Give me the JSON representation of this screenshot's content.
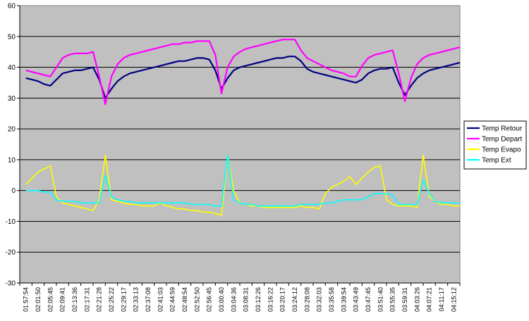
{
  "chart_data": {
    "type": "line",
    "title": "",
    "xlabel": "",
    "ylabel": "",
    "ylim": [
      -30,
      60
    ],
    "y_ticks": [
      -30,
      -20,
      -10,
      0,
      10,
      20,
      30,
      40,
      50,
      60
    ],
    "grid": "horizontal",
    "legend_position": "right",
    "plot_background": "#c0c0c0",
    "x_ticks": [
      "01:57:54",
      "02:01:50",
      "02:05:45",
      "02:09:41",
      "02:13:36",
      "02:17:31",
      "02:21:28",
      "02:25:22",
      "02:29:17",
      "02:33:13",
      "02:37:08",
      "02:41:03",
      "02:44:59",
      "02:48:54",
      "02:52:50",
      "02:56:45",
      "03:00:40",
      "03:04:36",
      "03:08:31",
      "03:12:26",
      "03:16:22",
      "03:20:17",
      "03:24:12",
      "03:28:08",
      "03:32:03",
      "03:35:58",
      "03:39:54",
      "03:43:49",
      "03:47:45",
      "03:51:40",
      "03:55:35",
      "03:59:31",
      "04:03:26",
      "04:07:21",
      "04:11:17",
      "04:15:12"
    ],
    "x": [
      0,
      0.5,
      1,
      1.5,
      2,
      2.5,
      3,
      3.5,
      4,
      4.5,
      5,
      5.5,
      6,
      6.5,
      7,
      7.5,
      8,
      8.5,
      9,
      9.5,
      10,
      10.5,
      11,
      11.5,
      12,
      12.5,
      13,
      13.5,
      14,
      14.5,
      15,
      15.5,
      16,
      16.5,
      17,
      17.5,
      18,
      18.5,
      19,
      19.5,
      20,
      20.5,
      21,
      21.5,
      22,
      22.5,
      23,
      23.5,
      24,
      24.5,
      25,
      25.5,
      26,
      26.5,
      27,
      27.5,
      28,
      28.5,
      29,
      29.5,
      30,
      30.5,
      31,
      31.5,
      32,
      32.5,
      33,
      33.5,
      34,
      34.5,
      35,
      35.5
    ],
    "series": [
      {
        "name": "Temp Retour",
        "color": "#000080",
        "values": [
          36.5,
          36,
          35.5,
          34.5,
          34,
          36,
          38,
          38.5,
          39,
          39,
          39.5,
          40,
          36,
          30,
          33,
          35.5,
          37,
          38,
          38.5,
          39,
          39.5,
          40,
          40.5,
          41,
          41.5,
          42,
          42,
          42.5,
          43,
          43,
          42.5,
          39,
          33,
          36.5,
          39,
          40,
          40.5,
          41,
          41.5,
          42,
          42.5,
          43,
          43,
          43.5,
          43.5,
          42,
          39.5,
          38.5,
          38,
          37.5,
          37,
          36.5,
          36,
          35.5,
          35,
          36,
          38,
          39,
          39.5,
          39.5,
          40,
          35,
          31,
          34,
          36.5,
          38,
          39,
          39.5,
          40,
          40.5,
          41,
          41.5
        ]
      },
      {
        "name": "Temp Depart",
        "color": "#ff00ff",
        "values": [
          39,
          38.5,
          38,
          37.5,
          37,
          40,
          43,
          44,
          44.5,
          44.5,
          44.5,
          45,
          37,
          28,
          37,
          41,
          43,
          44,
          44.5,
          45,
          45.5,
          46,
          46.5,
          47,
          47.5,
          47.5,
          48,
          48,
          48.5,
          48.5,
          48.5,
          44,
          31.5,
          40,
          43.5,
          45,
          46,
          46.5,
          47,
          47.5,
          48,
          48.5,
          49,
          49,
          49,
          45.5,
          43,
          42,
          41,
          40,
          39,
          38.5,
          38,
          37,
          37,
          40.5,
          43,
          44,
          44.5,
          45,
          45.5,
          38,
          29,
          36.5,
          41,
          43,
          44,
          44.5,
          45,
          45.5,
          46,
          46.5
        ]
      },
      {
        "name": "Temp Evapo",
        "color": "#ffff00",
        "values": [
          2,
          4,
          6,
          7,
          8,
          -2,
          -4,
          -4.5,
          -5,
          -5.5,
          -6,
          -6.5,
          -3,
          11.5,
          -3,
          -3.5,
          -4,
          -4.5,
          -4.5,
          -5,
          -5,
          -5,
          -4,
          -5,
          -5.5,
          -6,
          -6,
          -6.5,
          -6.5,
          -7,
          -7,
          -7.5,
          -8,
          11.5,
          0,
          -4,
          -4.5,
          -5,
          -5,
          -5.5,
          -5.5,
          -5.5,
          -5.5,
          -5.5,
          -5.5,
          -5,
          -5.5,
          -5.5,
          -6,
          -1,
          1,
          2,
          3,
          4.5,
          2,
          4,
          6,
          7.5,
          8,
          -3,
          -4.5,
          -5,
          -5,
          -5,
          -5.5,
          11.5,
          -2,
          -3.5,
          -4.5,
          -4.5,
          -5,
          -5
        ]
      },
      {
        "name": "Temp Ext",
        "color": "#00ffff",
        "values": [
          0,
          0,
          0,
          -0.5,
          -0.5,
          -3,
          -3.5,
          -3.5,
          -3.5,
          -4,
          -4,
          -4,
          -4,
          5,
          -2,
          -3,
          -3.5,
          -3.5,
          -4,
          -4,
          -4,
          -4,
          -4,
          -4,
          -4,
          -4,
          -4,
          -4.5,
          -4.5,
          -4.5,
          -4.5,
          -5,
          -5,
          11.5,
          -3,
          -4,
          -4.5,
          -4.5,
          -5,
          -5,
          -5,
          -5,
          -5,
          -5,
          -5,
          -4.5,
          -4.5,
          -4.5,
          -4.5,
          -4,
          -4,
          -3.5,
          -3,
          -3,
          -3,
          -3,
          -2,
          -1,
          -1,
          -1,
          -1.5,
          -4.5,
          -4.5,
          -4.5,
          -4.5,
          3.5,
          -1,
          -3.5,
          -4,
          -4,
          -4,
          -4
        ]
      }
    ]
  }
}
